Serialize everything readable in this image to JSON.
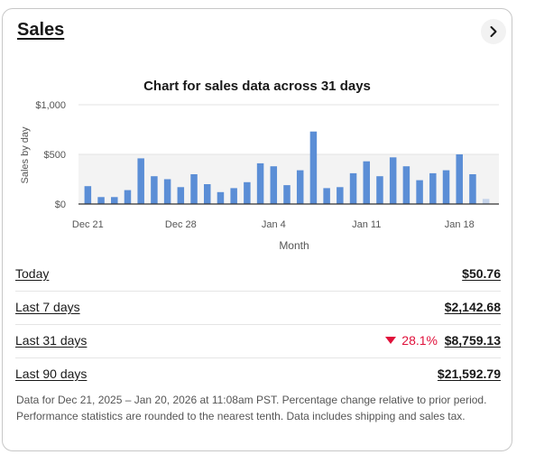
{
  "card": {
    "title": "Sales",
    "nav_icon": "chevron-right-icon"
  },
  "chart_data": {
    "type": "bar",
    "title": "Chart for sales data across 31 days",
    "xlabel": "Month",
    "ylabel": "Sales by day",
    "ylim": [
      0,
      1000
    ],
    "yticks": [
      "$0",
      "$500",
      "$1,000"
    ],
    "x_tick_labels": [
      {
        "label": "Dec 21",
        "index": 0
      },
      {
        "label": "Dec 28",
        "index": 7
      },
      {
        "label": "Jan 4",
        "index": 14
      },
      {
        "label": "Jan 11",
        "index": 21
      },
      {
        "label": "Jan 18",
        "index": 28
      }
    ],
    "categories": [
      "Dec 21",
      "Dec 22",
      "Dec 23",
      "Dec 24",
      "Dec 25",
      "Dec 26",
      "Dec 27",
      "Dec 28",
      "Dec 29",
      "Dec 30",
      "Dec 31",
      "Jan 1",
      "Jan 2",
      "Jan 3",
      "Jan 4",
      "Jan 5",
      "Jan 6",
      "Jan 7",
      "Jan 8",
      "Jan 9",
      "Jan 10",
      "Jan 11",
      "Jan 12",
      "Jan 13",
      "Jan 14",
      "Jan 15",
      "Jan 16",
      "Jan 17",
      "Jan 18",
      "Jan 19",
      "Jan 20"
    ],
    "values": [
      180,
      70,
      70,
      140,
      460,
      280,
      250,
      170,
      300,
      200,
      120,
      160,
      220,
      410,
      380,
      190,
      340,
      730,
      160,
      170,
      310,
      430,
      280,
      470,
      380,
      240,
      310,
      340,
      500,
      300,
      51
    ],
    "bar_color": "#5b8ed6",
    "last_bar_color": "#c4d3ea",
    "grid": true
  },
  "summary": [
    {
      "label": "Today",
      "value": "$50.76",
      "change": ""
    },
    {
      "label": "Last 7 days",
      "value": "$2,142.68",
      "change": ""
    },
    {
      "label": "Last 31 days",
      "value": "$8,759.13",
      "change": "28.1%"
    },
    {
      "label": "Last 90 days",
      "value": "$21,592.79",
      "change": ""
    }
  ],
  "colors": {
    "decrease": "#e0103a"
  },
  "footnote": "Data for Dec 21, 2025 – Jan 20, 2026 at 11:08am PST. Percentage change relative to prior period. Performance statistics are rounded to the nearest tenth. Data includes shipping and sales tax."
}
